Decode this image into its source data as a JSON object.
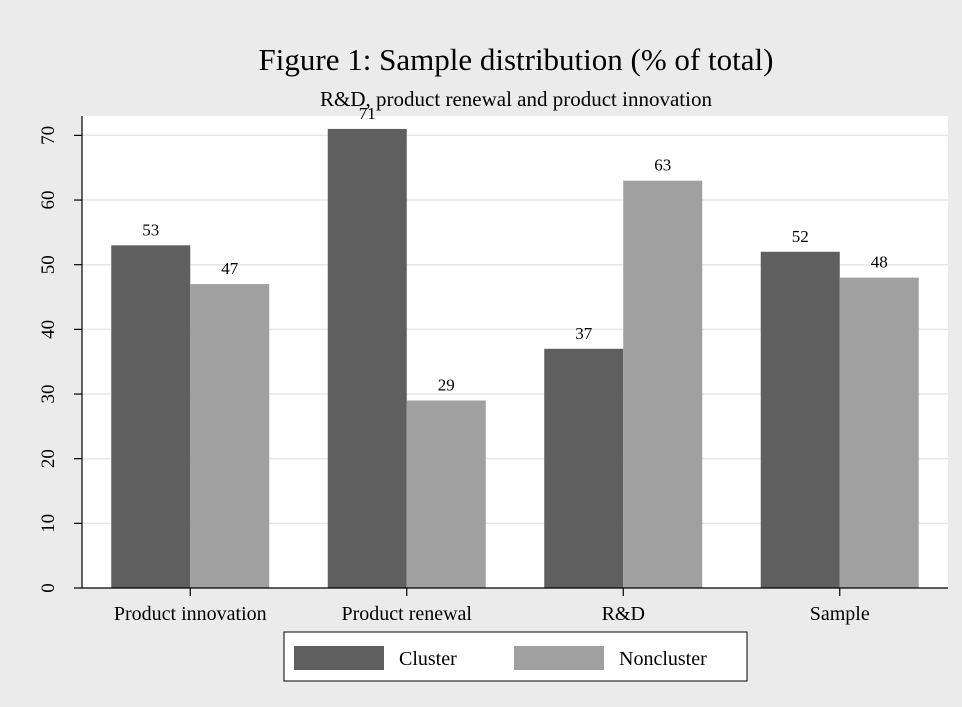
{
  "chart_data": {
    "type": "bar",
    "title": "Figure 1: Sample distribution (% of total)",
    "subtitle": "R&D, product renewal and product innovation",
    "xlabel": "",
    "ylabel": "",
    "categories": [
      "Product innovation",
      "Product renewal",
      "R&D",
      "Sample"
    ],
    "series": [
      {
        "name": "Cluster",
        "values": [
          53,
          71,
          37,
          52
        ],
        "color": "#5f5f5f"
      },
      {
        "name": "Noncluster",
        "values": [
          47,
          29,
          63,
          48
        ],
        "color": "#a0a0a0"
      }
    ],
    "ylim": [
      0,
      73
    ],
    "yticks": [
      0,
      10,
      20,
      30,
      40,
      50,
      60,
      70
    ],
    "grid": true,
    "data_labels": true,
    "legend_position": "bottom",
    "colors": {
      "outer_background": "#ebebeb",
      "plot_background": "#ffffff",
      "grid": "#e6e6e6"
    }
  }
}
